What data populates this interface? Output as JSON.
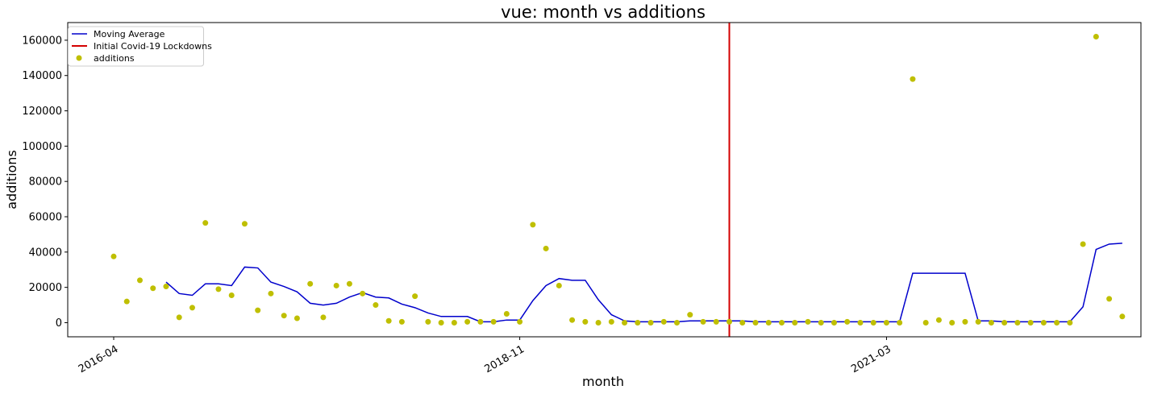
{
  "chart_data": {
    "type": "scatter",
    "title": "vue: month vs additions",
    "xlabel": "month",
    "ylabel": "additions",
    "x_start": "2016-04",
    "x_ticks": [
      "2016-04",
      "2018-11",
      "2021-03"
    ],
    "ylim": [
      -8000,
      170000
    ],
    "y_ticks": [
      0,
      20000,
      40000,
      60000,
      80000,
      100000,
      120000,
      140000,
      160000
    ],
    "legend_position": "top-left",
    "grid": false,
    "colors": {
      "scatter": "#bfbf00",
      "moving_average": "#0000cc",
      "covid_line": "#d40000"
    },
    "lockdown_month": "2020-03",
    "series": [
      {
        "name": "additions",
        "type": "scatter",
        "values": [
          37500,
          12000,
          24000,
          19500,
          20500,
          3000,
          8500,
          56500,
          19000,
          15500,
          56000,
          7000,
          16500,
          4000,
          2500,
          22000,
          3000,
          21000,
          22000,
          16500,
          10000,
          1000,
          500,
          15000,
          500,
          0,
          0,
          500,
          500,
          500,
          5000,
          500,
          55500,
          42000,
          21000,
          1500,
          500,
          0,
          500,
          0,
          0,
          0,
          500,
          0,
          4500,
          500,
          500,
          500,
          0,
          0,
          0,
          0,
          0,
          500,
          0,
          0,
          500,
          0,
          0,
          0,
          0,
          138000,
          0,
          1500,
          0,
          500,
          500,
          0,
          0,
          0,
          0,
          0,
          0,
          0,
          44500,
          162000,
          13500,
          3500
        ]
      },
      {
        "name": "Moving Average",
        "type": "line",
        "start_index": 4,
        "values": [
          23000,
          16500,
          15500,
          22000,
          22000,
          21000,
          31500,
          31000,
          23000,
          20500,
          17500,
          11000,
          10000,
          11000,
          14500,
          17000,
          14500,
          14000,
          10500,
          8500,
          5500,
          3500,
          3500,
          3500,
          500,
          500,
          1500,
          1500,
          12500,
          21000,
          25000,
          24000,
          24000,
          13000,
          4500,
          1000,
          500,
          500,
          500,
          500,
          1000,
          1000,
          1000,
          1000,
          1000,
          500,
          500,
          500,
          500,
          500,
          500,
          500,
          500,
          500,
          500,
          500,
          500,
          28000,
          28000,
          28000,
          28000,
          28000,
          1000,
          1000,
          500,
          500,
          500,
          500,
          500,
          500,
          9000,
          41500,
          44500,
          45000
        ]
      },
      {
        "name": "Initial Covid-19 Lockdowns",
        "type": "vline",
        "x": "2020-03"
      }
    ]
  }
}
